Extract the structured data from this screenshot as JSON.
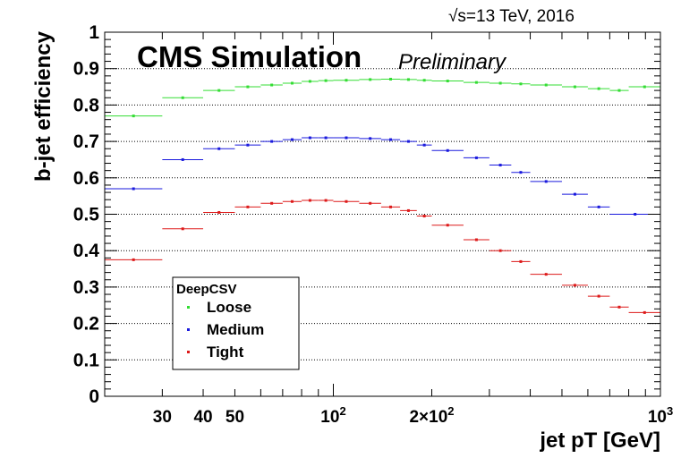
{
  "chart_data": {
    "type": "scatter",
    "energy_label": "√s=13 TeV, 2016",
    "cms_label": "CMS Simulation",
    "preliminary_label": "Preliminary",
    "xlabel": "jet pT [GeV]",
    "ylabel": "b-jet efficiency",
    "xscale": "log",
    "xlim": [
      20,
      1000
    ],
    "ylim": [
      0,
      1
    ],
    "x_tick_labels": [
      {
        "x": 30,
        "label": "30"
      },
      {
        "x": 40,
        "label": "40"
      },
      {
        "x": 50,
        "label": "50"
      },
      {
        "x": 100,
        "label": "10",
        "sup": "2"
      },
      {
        "x": 200,
        "label": "2×10",
        "sup": "2"
      },
      {
        "x": 1000,
        "label": "10",
        "sup": "3"
      }
    ],
    "y_tick_labels": [
      "0",
      "0.1",
      "0.2",
      "0.3",
      "0.4",
      "0.5",
      "0.6",
      "0.7",
      "0.8",
      "0.9",
      "1"
    ],
    "y_gridlines": [
      0.1,
      0.2,
      0.3,
      0.4,
      0.5,
      0.6,
      0.7,
      0.8,
      0.9
    ],
    "grid": "horizontal dotted",
    "legend": {
      "title": "DeepCSV",
      "placement": "bottom-left"
    },
    "series": [
      {
        "name": "Loose",
        "color": "#33dd33",
        "points": [
          {
            "xlo": 20,
            "xhi": 30,
            "y": 0.77
          },
          {
            "xlo": 30,
            "xhi": 40,
            "y": 0.82
          },
          {
            "xlo": 40,
            "xhi": 50,
            "y": 0.84
          },
          {
            "xlo": 50,
            "xhi": 60,
            "y": 0.85
          },
          {
            "xlo": 60,
            "xhi": 70,
            "y": 0.855
          },
          {
            "xlo": 70,
            "xhi": 80,
            "y": 0.86
          },
          {
            "xlo": 80,
            "xhi": 90,
            "y": 0.865
          },
          {
            "xlo": 90,
            "xhi": 100,
            "y": 0.867
          },
          {
            "xlo": 100,
            "xhi": 120,
            "y": 0.868
          },
          {
            "xlo": 120,
            "xhi": 140,
            "y": 0.87
          },
          {
            "xlo": 140,
            "xhi": 160,
            "y": 0.871
          },
          {
            "xlo": 160,
            "xhi": 180,
            "y": 0.87
          },
          {
            "xlo": 180,
            "xhi": 200,
            "y": 0.868
          },
          {
            "xlo": 200,
            "xhi": 250,
            "y": 0.866
          },
          {
            "xlo": 250,
            "xhi": 300,
            "y": 0.862
          },
          {
            "xlo": 300,
            "xhi": 350,
            "y": 0.86
          },
          {
            "xlo": 350,
            "xhi": 400,
            "y": 0.858
          },
          {
            "xlo": 400,
            "xhi": 500,
            "y": 0.855
          },
          {
            "xlo": 500,
            "xhi": 600,
            "y": 0.85
          },
          {
            "xlo": 600,
            "xhi": 700,
            "y": 0.845
          },
          {
            "xlo": 700,
            "xhi": 800,
            "y": 0.84
          },
          {
            "xlo": 800,
            "xhi": 1000,
            "y": 0.85
          }
        ]
      },
      {
        "name": "Medium",
        "color": "#1a1add",
        "points": [
          {
            "xlo": 20,
            "xhi": 30,
            "y": 0.57
          },
          {
            "xlo": 30,
            "xhi": 40,
            "y": 0.65
          },
          {
            "xlo": 40,
            "xhi": 50,
            "y": 0.68
          },
          {
            "xlo": 50,
            "xhi": 60,
            "y": 0.69
          },
          {
            "xlo": 60,
            "xhi": 70,
            "y": 0.7
          },
          {
            "xlo": 70,
            "xhi": 80,
            "y": 0.705
          },
          {
            "xlo": 80,
            "xhi": 90,
            "y": 0.71
          },
          {
            "xlo": 90,
            "xhi": 100,
            "y": 0.71
          },
          {
            "xlo": 100,
            "xhi": 120,
            "y": 0.71
          },
          {
            "xlo": 120,
            "xhi": 140,
            "y": 0.708
          },
          {
            "xlo": 140,
            "xhi": 160,
            "y": 0.705
          },
          {
            "xlo": 160,
            "xhi": 180,
            "y": 0.7
          },
          {
            "xlo": 180,
            "xhi": 200,
            "y": 0.69
          },
          {
            "xlo": 200,
            "xhi": 250,
            "y": 0.675
          },
          {
            "xlo": 250,
            "xhi": 300,
            "y": 0.655
          },
          {
            "xlo": 300,
            "xhi": 350,
            "y": 0.635
          },
          {
            "xlo": 350,
            "xhi": 400,
            "y": 0.615
          },
          {
            "xlo": 400,
            "xhi": 500,
            "y": 0.59
          },
          {
            "xlo": 500,
            "xhi": 600,
            "y": 0.555
          },
          {
            "xlo": 600,
            "xhi": 700,
            "y": 0.52
          },
          {
            "xlo": 700,
            "xhi": 1000,
            "y": 0.5
          }
        ]
      },
      {
        "name": "Tight",
        "color": "#dd1a1a",
        "points": [
          {
            "xlo": 20,
            "xhi": 30,
            "y": 0.375
          },
          {
            "xlo": 30,
            "xhi": 40,
            "y": 0.46
          },
          {
            "xlo": 40,
            "xhi": 50,
            "y": 0.505
          },
          {
            "xlo": 50,
            "xhi": 60,
            "y": 0.52
          },
          {
            "xlo": 60,
            "xhi": 70,
            "y": 0.53
          },
          {
            "xlo": 70,
            "xhi": 80,
            "y": 0.535
          },
          {
            "xlo": 80,
            "xhi": 90,
            "y": 0.538
          },
          {
            "xlo": 90,
            "xhi": 100,
            "y": 0.538
          },
          {
            "xlo": 100,
            "xhi": 120,
            "y": 0.535
          },
          {
            "xlo": 120,
            "xhi": 140,
            "y": 0.53
          },
          {
            "xlo": 140,
            "xhi": 160,
            "y": 0.52
          },
          {
            "xlo": 160,
            "xhi": 180,
            "y": 0.51
          },
          {
            "xlo": 180,
            "xhi": 200,
            "y": 0.495
          },
          {
            "xlo": 200,
            "xhi": 250,
            "y": 0.47
          },
          {
            "xlo": 250,
            "xhi": 300,
            "y": 0.43
          },
          {
            "xlo": 300,
            "xhi": 350,
            "y": 0.4
          },
          {
            "xlo": 350,
            "xhi": 400,
            "y": 0.37
          },
          {
            "xlo": 400,
            "xhi": 500,
            "y": 0.335
          },
          {
            "xlo": 500,
            "xhi": 600,
            "y": 0.305
          },
          {
            "xlo": 600,
            "xhi": 700,
            "y": 0.275
          },
          {
            "xlo": 700,
            "xhi": 800,
            "y": 0.245
          },
          {
            "xlo": 800,
            "xhi": 1000,
            "y": 0.23
          }
        ]
      }
    ]
  }
}
